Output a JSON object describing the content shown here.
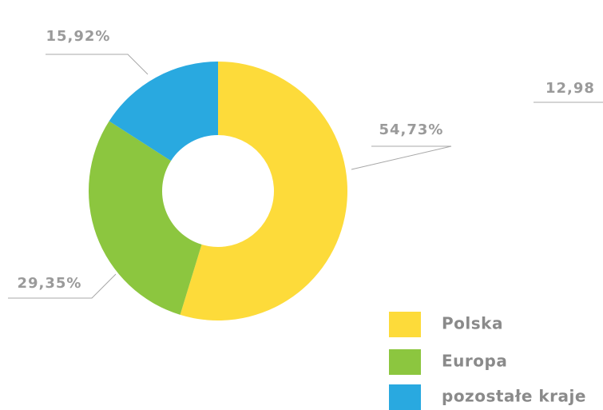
{
  "chart_data": {
    "type": "donut",
    "categories": [
      "Polska",
      "Europa",
      "pozostałe kraje"
    ],
    "values": [
      54.73,
      29.35,
      15.92
    ],
    "value_labels": [
      "54,73%",
      "29,35%",
      "15,92%"
    ],
    "colors": [
      "#fddb3a",
      "#8cc63f",
      "#29a9e0"
    ],
    "annotation": "12,98"
  }
}
